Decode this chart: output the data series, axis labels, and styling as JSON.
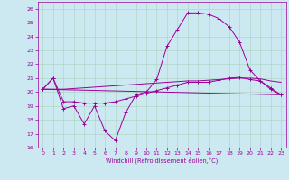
{
  "xlabel": "Windchill (Refroidissement éolien,°C)",
  "xlim": [
    -0.5,
    23.5
  ],
  "ylim": [
    16,
    26.5
  ],
  "xticks": [
    0,
    1,
    2,
    3,
    4,
    5,
    6,
    7,
    8,
    9,
    10,
    11,
    12,
    13,
    14,
    15,
    16,
    17,
    18,
    19,
    20,
    21,
    22,
    23
  ],
  "yticks": [
    16,
    17,
    18,
    19,
    20,
    21,
    22,
    23,
    24,
    25,
    26
  ],
  "bg_color": "#cce8f0",
  "grid_color": "#b0d8c8",
  "line_color": "#990099",
  "line1_x": [
    0,
    1,
    2,
    3,
    4,
    5,
    6,
    7,
    8,
    9,
    10,
    11,
    12,
    13,
    14,
    15,
    16,
    17,
    18,
    19,
    20,
    21,
    22,
    23
  ],
  "line1_y": [
    20.2,
    21.0,
    18.8,
    19.0,
    17.7,
    19.0,
    17.2,
    16.5,
    18.5,
    19.8,
    20.0,
    20.9,
    23.3,
    24.5,
    25.7,
    25.7,
    25.6,
    25.3,
    24.7,
    23.6,
    21.6,
    20.8,
    20.2,
    19.8
  ],
  "line2_x": [
    0,
    1,
    2,
    3,
    4,
    5,
    6,
    7,
    8,
    9,
    10,
    11,
    12,
    13,
    14,
    15,
    16,
    17,
    18,
    19,
    20,
    21,
    22,
    23
  ],
  "line2_y": [
    20.2,
    21.0,
    19.3,
    19.3,
    19.2,
    19.2,
    19.2,
    19.3,
    19.5,
    19.7,
    19.9,
    20.1,
    20.3,
    20.5,
    20.7,
    20.7,
    20.7,
    20.85,
    21.0,
    21.05,
    20.9,
    20.8,
    20.3,
    19.8
  ],
  "line3_x": [
    0,
    23
  ],
  "line3_y": [
    20.2,
    19.8
  ],
  "line4_x": [
    0,
    1,
    2,
    3,
    4,
    5,
    6,
    7,
    8,
    9,
    10,
    11,
    12,
    13,
    14,
    15,
    16,
    17,
    18,
    19,
    20,
    21,
    22,
    23
  ],
  "line4_y": [
    20.2,
    20.2,
    20.2,
    20.25,
    20.3,
    20.35,
    20.4,
    20.45,
    20.5,
    20.55,
    20.6,
    20.65,
    20.7,
    20.75,
    20.8,
    20.8,
    20.85,
    20.9,
    20.95,
    21.0,
    21.0,
    20.95,
    20.8,
    20.7
  ]
}
